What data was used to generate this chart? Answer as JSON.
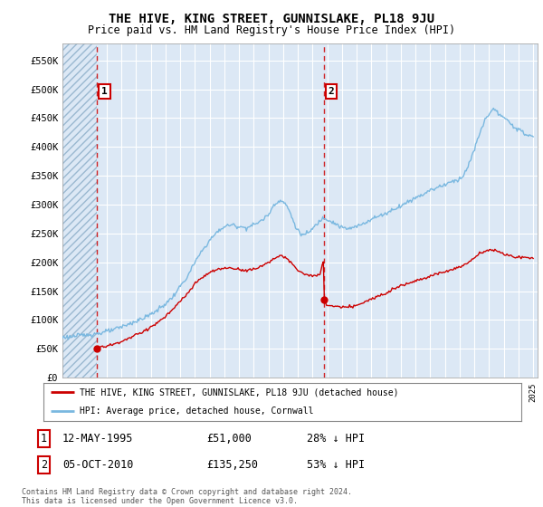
{
  "title": "THE HIVE, KING STREET, GUNNISLAKE, PL18 9JU",
  "subtitle": "Price paid vs. HM Land Registry's House Price Index (HPI)",
  "ylim": [
    0,
    580000
  ],
  "yticks": [
    0,
    50000,
    100000,
    150000,
    200000,
    250000,
    300000,
    350000,
    400000,
    450000,
    500000,
    550000
  ],
  "ytick_labels": [
    "£0",
    "£50K",
    "£100K",
    "£150K",
    "£200K",
    "£250K",
    "£300K",
    "£350K",
    "£400K",
    "£450K",
    "£500K",
    "£550K"
  ],
  "hpi_color": "#7ab8e0",
  "price_color": "#cc0000",
  "bg_color": "#dce8f5",
  "grid_color": "#ffffff",
  "sale1_date": 1995.36,
  "sale1_price": 51000,
  "sale2_date": 2010.75,
  "sale2_price": 135250,
  "legend_text1": "THE HIVE, KING STREET, GUNNISLAKE, PL18 9JU (detached house)",
  "legend_text2": "HPI: Average price, detached house, Cornwall",
  "anno1_label": "1",
  "anno2_label": "2",
  "footnote1": "Contains HM Land Registry data © Crown copyright and database right 2024.",
  "footnote2": "This data is licensed under the Open Government Licence v3.0.",
  "table_row1": [
    "1",
    "12-MAY-1995",
    "£51,000",
    "28% ↓ HPI"
  ],
  "table_row2": [
    "2",
    "05-OCT-2010",
    "£135,250",
    "53% ↓ HPI"
  ],
  "xmin": 1993,
  "xmax": 2025.3
}
